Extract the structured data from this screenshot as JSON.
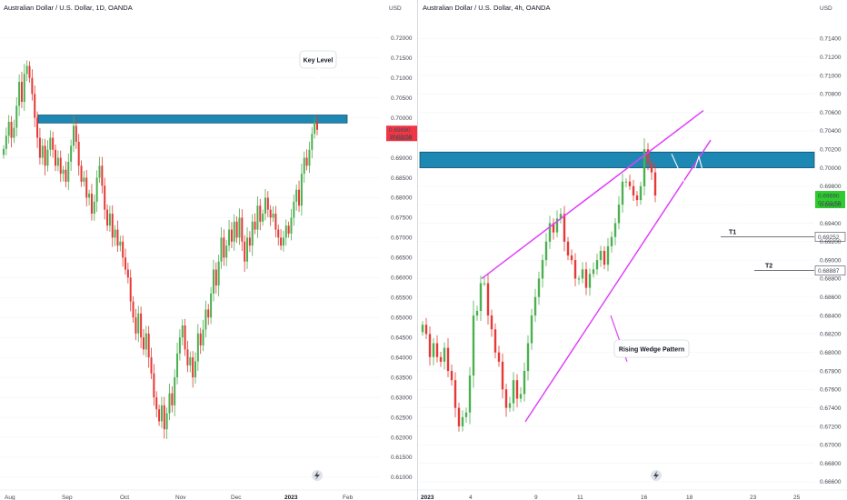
{
  "colors": {
    "up": "#4caf50",
    "up_bright": "#3ddc3d",
    "down": "#e53935",
    "zone_fill": "#1e88b4",
    "zone_stroke": "#14506b",
    "wedge": "#e040fb",
    "projection": "#ffffff",
    "current_price_red": "#f23645",
    "current_price_green": "#2ecc2e",
    "axis_text": "#434651"
  },
  "icons": [
    "lightning-icon"
  ],
  "chart_data": [
    {
      "type": "candlestick",
      "title": "Australian Dollar / U.S. Dollar, 1D, OANDA",
      "currency": "USD",
      "ylim": [
        0.6077,
        0.7245
      ],
      "y_ticks": [
        "0.72000",
        "0.71500",
        "0.71000",
        "0.70500",
        "0.70000",
        "0.69500",
        "0.69000",
        "0.68500",
        "0.68000",
        "0.67500",
        "0.67000",
        "0.66500",
        "0.66000",
        "0.65500",
        "0.65000",
        "0.64500",
        "0.64000",
        "0.63500",
        "0.63000",
        "0.62500",
        "0.62000",
        "0.61500",
        "0.61000"
      ],
      "x_ticks": [
        "Aug",
        "Sep",
        "Oct",
        "Nov",
        "Dec",
        "2023",
        "Feb"
      ],
      "current_price": "0.69690",
      "countdown": "10:02:59",
      "zone": {
        "low": 0.6987,
        "high": 0.7007
      },
      "annotation": "Key Level",
      "closes": [
        0.6922,
        0.6955,
        0.699,
        0.695,
        0.6975,
        0.703,
        0.709,
        0.704,
        0.711,
        0.713,
        0.71,
        0.706,
        0.7,
        0.695,
        0.69,
        0.693,
        0.688,
        0.692,
        0.695,
        0.692,
        0.688,
        0.69,
        0.686,
        0.687,
        0.684,
        0.689,
        0.693,
        0.698,
        0.694,
        0.688,
        0.684,
        0.685,
        0.68,
        0.681,
        0.676,
        0.679,
        0.685,
        0.688,
        0.683,
        0.677,
        0.673,
        0.676,
        0.67,
        0.672,
        0.668,
        0.669,
        0.665,
        0.662,
        0.66,
        0.654,
        0.65,
        0.646,
        0.651,
        0.645,
        0.642,
        0.646,
        0.64,
        0.636,
        0.63,
        0.627,
        0.624,
        0.628,
        0.622,
        0.626,
        0.631,
        0.628,
        0.635,
        0.641,
        0.645,
        0.648,
        0.642,
        0.638,
        0.64,
        0.635,
        0.639,
        0.646,
        0.643,
        0.647,
        0.652,
        0.65,
        0.656,
        0.662,
        0.658,
        0.664,
        0.67,
        0.665,
        0.668,
        0.672,
        0.669,
        0.674,
        0.67,
        0.675,
        0.669,
        0.664,
        0.67,
        0.668,
        0.674,
        0.672,
        0.678,
        0.674,
        0.676,
        0.68,
        0.677,
        0.675,
        0.676,
        0.672,
        0.67,
        0.668,
        0.67,
        0.673,
        0.671,
        0.675,
        0.679,
        0.682,
        0.678,
        0.686,
        0.69,
        0.688,
        0.692,
        0.696,
        0.699,
        0.697
      ]
    },
    {
      "type": "candlestick",
      "title": "Australian Dollar / U.S. Dollar, 4h, OANDA",
      "currency": "USD",
      "ylim": [
        0.6655,
        0.716
      ],
      "y_ticks": [
        "0.71400",
        "0.71200",
        "0.71000",
        "0.70800",
        "0.70600",
        "0.70400",
        "0.70200",
        "0.70000",
        "0.69800",
        "0.69600",
        "0.69400",
        "0.69200",
        "0.69000",
        "0.68800",
        "0.68600",
        "0.68400",
        "0.68200",
        "0.68000",
        "0.67800",
        "0.67600",
        "0.67400",
        "0.67200",
        "0.67000",
        "0.66800",
        "0.66600"
      ],
      "x_ticks": [
        "2023",
        "4",
        "9",
        "11",
        "16",
        "18",
        "23",
        "25"
      ],
      "current_price": "0.69690",
      "countdown": "02:02:59",
      "targets": [
        {
          "label": "T1",
          "value": "0.69252"
        },
        {
          "label": "T2",
          "value": "0.68887"
        }
      ],
      "zone": {
        "low": 0.7,
        "high": 0.7017
      },
      "annotation": "Rising Wedge Pattern",
      "closes": [
        0.683,
        0.682,
        0.6795,
        0.681,
        0.6795,
        0.679,
        0.6805,
        0.678,
        0.677,
        0.674,
        0.672,
        0.673,
        0.6735,
        0.6775,
        0.684,
        0.6845,
        0.6875,
        0.6875,
        0.684,
        0.6825,
        0.68,
        0.679,
        0.676,
        0.674,
        0.6745,
        0.677,
        0.675,
        0.6755,
        0.678,
        0.681,
        0.684,
        0.686,
        0.688,
        0.69,
        0.692,
        0.694,
        0.693,
        0.6945,
        0.695,
        0.692,
        0.6905,
        0.69,
        0.688,
        0.688,
        0.689,
        0.687,
        0.6885,
        0.689,
        0.69,
        0.691,
        0.6895,
        0.6915,
        0.6925,
        0.694,
        0.696,
        0.6985,
        0.6985,
        0.698,
        0.697,
        0.6965,
        0.698,
        0.702,
        0.7005,
        0.6995,
        0.697
      ]
    }
  ]
}
